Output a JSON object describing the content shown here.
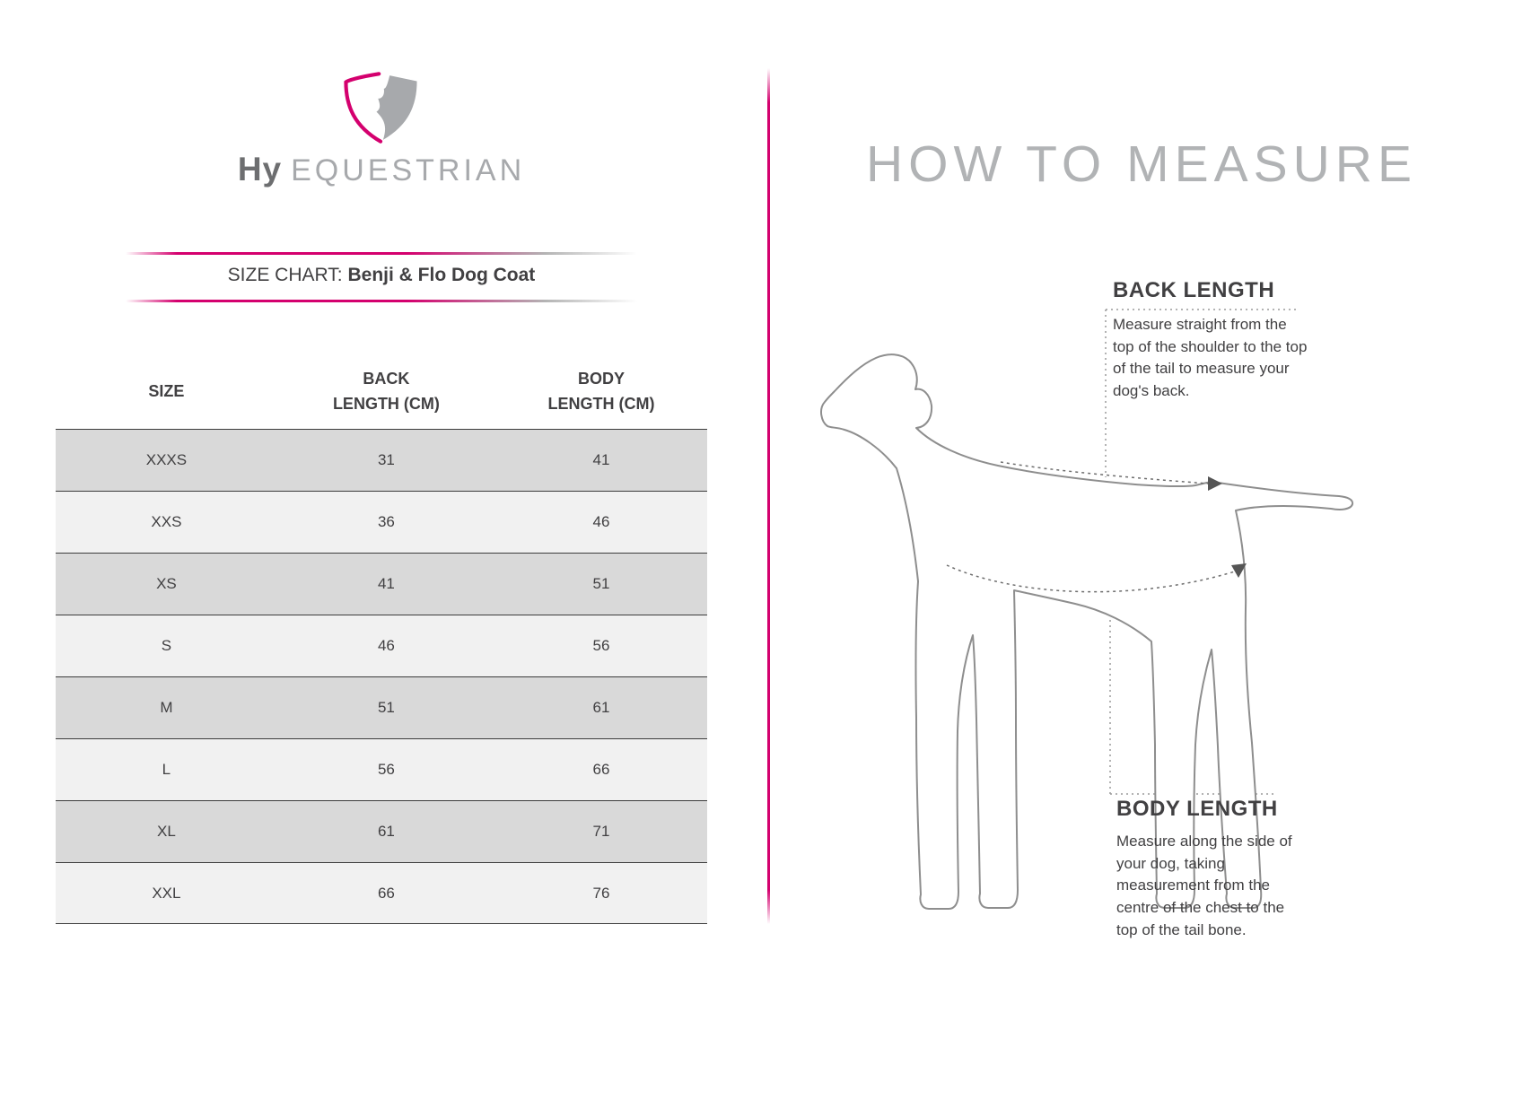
{
  "brand": {
    "name_primary": "Hy",
    "name_secondary": "EQUESTRIAN",
    "logo_icon": "hy-shield-horse-logo"
  },
  "size_chart": {
    "title_label": "SIZE CHART:",
    "title_product": "Benji & Flo Dog Coat",
    "columns": [
      "SIZE",
      "BACK\nLENGTH (CM)",
      "BODY\nLENGTH (CM)"
    ],
    "rows": [
      [
        "XXXS",
        "31",
        "41"
      ],
      [
        "XXS",
        "36",
        "46"
      ],
      [
        "XS",
        "41",
        "51"
      ],
      [
        "S",
        "46",
        "56"
      ],
      [
        "M",
        "51",
        "61"
      ],
      [
        "L",
        "56",
        "66"
      ],
      [
        "XL",
        "61",
        "71"
      ],
      [
        "XXL",
        "66",
        "76"
      ]
    ]
  },
  "how_to_measure": {
    "title": "HOW TO MEASURE",
    "back_length_heading": "BACK LENGTH",
    "back_length_text": "Measure straight from the top of the shoulder to the top of the tail to measure your dog's back.",
    "body_length_heading": "BODY LENGTH",
    "body_length_text": "Measure along the side of your dog, taking measurement from the centre of the chest to the top of the tail bone.",
    "diagram": "dog-side-outline"
  },
  "colors": {
    "accent_pink": "#d4006e",
    "heading_gray": "#b1b3b5",
    "text_dark": "#414042",
    "row_dark": "#d9d9d9",
    "row_light": "#f1f1f1",
    "outline_gray": "#8e8e8e"
  }
}
